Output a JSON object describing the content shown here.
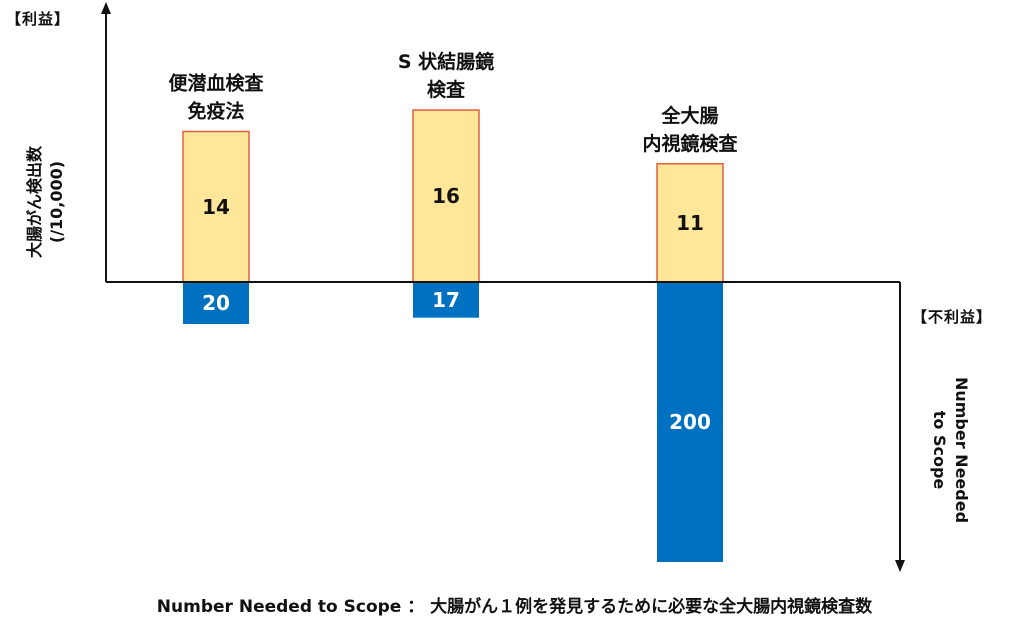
{
  "chart_data": {
    "type": "bar",
    "categories": [
      [
        "便潜血検査",
        "免疫法"
      ],
      [
        "S 状結腸鏡",
        "検査"
      ],
      [
        "全大腸",
        "内視鏡検査"
      ]
    ],
    "series": [
      {
        "name": "利益",
        "values": [
          14,
          16,
          11
        ],
        "color": "#FFE699",
        "border": "#E06040"
      },
      {
        "name": "不利益",
        "values": [
          20,
          17,
          200
        ],
        "color": "#0070C0"
      }
    ],
    "labels": {
      "top_left": "【利益】",
      "bottom_right": "【不利益】",
      "y_positive": "大腸がん検出数",
      "y_positive_unit": "(/10,000)",
      "y_negative": "Number Needed to Scope"
    },
    "footnote": "Number Needed to Scope ： 大腸がん１例を発見するために必要な全大腸内視鏡検査数"
  }
}
